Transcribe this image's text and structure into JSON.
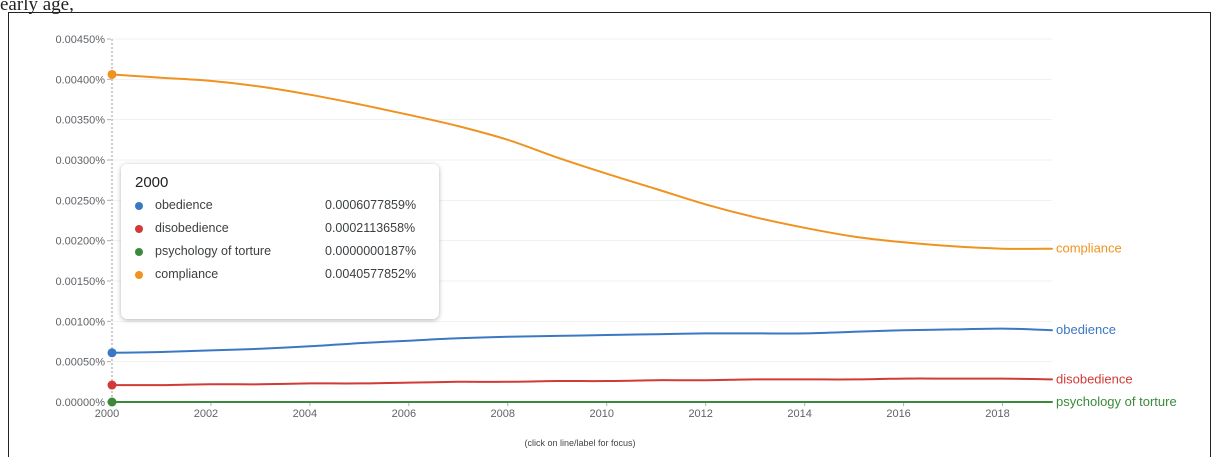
{
  "top_text": "early age, ",
  "hint": "(click on line/label for focus)",
  "tooltip": {
    "title": "2000",
    "rows": [
      {
        "name": "obedience",
        "value": "0.0006077859%",
        "color": "#3b78c4"
      },
      {
        "name": "disobedience",
        "value": "0.0002113658%",
        "color": "#d03b36"
      },
      {
        "name": "psychology of torture",
        "value": "0.0000000187%",
        "color": "#3b8a3b"
      },
      {
        "name": "compliance",
        "value": "0.0040577852%",
        "color": "#f0921f"
      }
    ]
  },
  "chart_data": {
    "type": "line",
    "y_ticks": [
      "0.00000%",
      "0.00050%",
      "0.00100%",
      "0.00150%",
      "0.00200%",
      "0.00250%",
      "0.00300%",
      "0.00350%",
      "0.00400%",
      "0.00450%"
    ],
    "x_ticks": [
      "2000",
      "2002",
      "2004",
      "2006",
      "2008",
      "2010",
      "2012",
      "2014",
      "2016",
      "2018"
    ],
    "xlim": [
      2000,
      2019
    ],
    "ylim": [
      0,
      0.0045
    ],
    "grid": true,
    "focus_year": 2000,
    "series": [
      {
        "name": "compliance",
        "color": "#f0921f",
        "x": [
          2000,
          2001,
          2002,
          2003,
          2004,
          2005,
          2006,
          2007,
          2008,
          2009,
          2010,
          2011,
          2012,
          2013,
          2014,
          2015,
          2016,
          2017,
          2018,
          2019
        ],
        "values": [
          0.00406,
          0.00402,
          0.00398,
          0.00391,
          0.00381,
          0.00369,
          0.00356,
          0.00342,
          0.00325,
          0.00303,
          0.00283,
          0.00264,
          0.00245,
          0.00229,
          0.00216,
          0.00205,
          0.00198,
          0.00193,
          0.0019,
          0.0019
        ]
      },
      {
        "name": "obedience",
        "color": "#3b78c4",
        "x": [
          2000,
          2001,
          2002,
          2003,
          2004,
          2005,
          2006,
          2007,
          2008,
          2009,
          2010,
          2011,
          2012,
          2013,
          2014,
          2015,
          2016,
          2017,
          2018,
          2019
        ],
        "values": [
          0.00061,
          0.00062,
          0.00064,
          0.00066,
          0.00069,
          0.00073,
          0.00076,
          0.00079,
          0.00081,
          0.00082,
          0.00083,
          0.00084,
          0.00085,
          0.00085,
          0.00085,
          0.00087,
          0.00089,
          0.0009,
          0.00091,
          0.00089
        ]
      },
      {
        "name": "disobedience",
        "color": "#d03b36",
        "x": [
          2000,
          2001,
          2002,
          2003,
          2004,
          2005,
          2006,
          2007,
          2008,
          2009,
          2010,
          2011,
          2012,
          2013,
          2014,
          2015,
          2016,
          2017,
          2018,
          2019
        ],
        "values": [
          0.00021,
          0.00021,
          0.00022,
          0.00022,
          0.00023,
          0.00023,
          0.00024,
          0.00025,
          0.00025,
          0.00026,
          0.00026,
          0.00027,
          0.00027,
          0.00028,
          0.00028,
          0.00028,
          0.00029,
          0.00029,
          0.00029,
          0.00028
        ]
      },
      {
        "name": "psychology of torture",
        "color": "#3b8a3b",
        "x": [
          2000,
          2001,
          2002,
          2003,
          2004,
          2005,
          2006,
          2007,
          2008,
          2009,
          2010,
          2011,
          2012,
          2013,
          2014,
          2015,
          2016,
          2017,
          2018,
          2019
        ],
        "values": [
          2e-08,
          2e-08,
          2e-08,
          2e-08,
          2e-08,
          2e-08,
          2e-08,
          2e-08,
          2e-08,
          2e-08,
          2e-08,
          2e-08,
          2e-08,
          2e-08,
          2e-08,
          2e-08,
          2e-08,
          2e-08,
          2e-08,
          2e-08
        ]
      }
    ]
  }
}
